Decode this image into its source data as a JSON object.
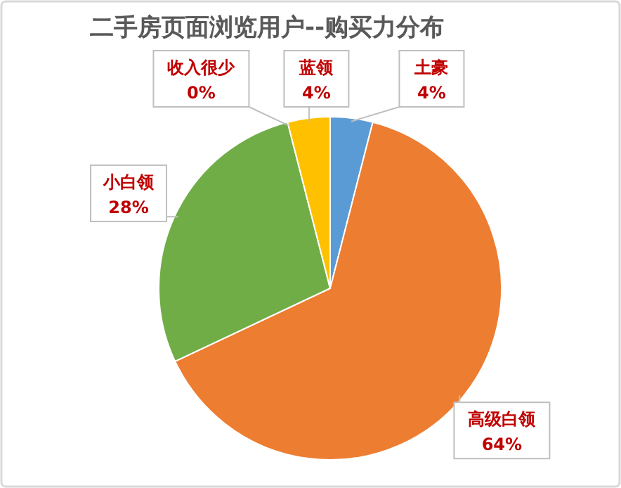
{
  "chart_data": {
    "type": "pie",
    "title": "二手房页面浏览用户--购买力分布",
    "categories": [
      "土豪",
      "高级白领",
      "小白领",
      "收入很少",
      "蓝领"
    ],
    "values": [
      4,
      64,
      28,
      0,
      4
    ],
    "colors": [
      "#5b9bd5",
      "#ed7d31",
      "#70ad47",
      null,
      "#ffc000"
    ],
    "value_labels": [
      "4%",
      "64%",
      "28%",
      "0%",
      "4%"
    ]
  }
}
